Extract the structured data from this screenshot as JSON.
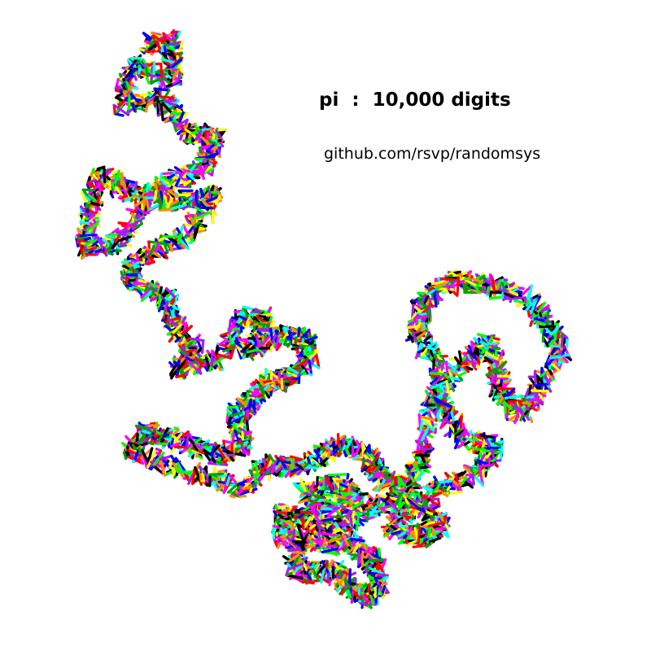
{
  "title": "pi  :  10,000 digits",
  "subtitle": "github.com/rsvp/randomsys",
  "walk": {
    "steps": 10000,
    "step_colors": [
      "#000000",
      "#ff0000",
      "#00a000",
      "#0000ff",
      "#00ffff",
      "#ff00ff",
      "#ffff00",
      "#ff8c00",
      "#a020f0",
      "#00ff00"
    ]
  }
}
